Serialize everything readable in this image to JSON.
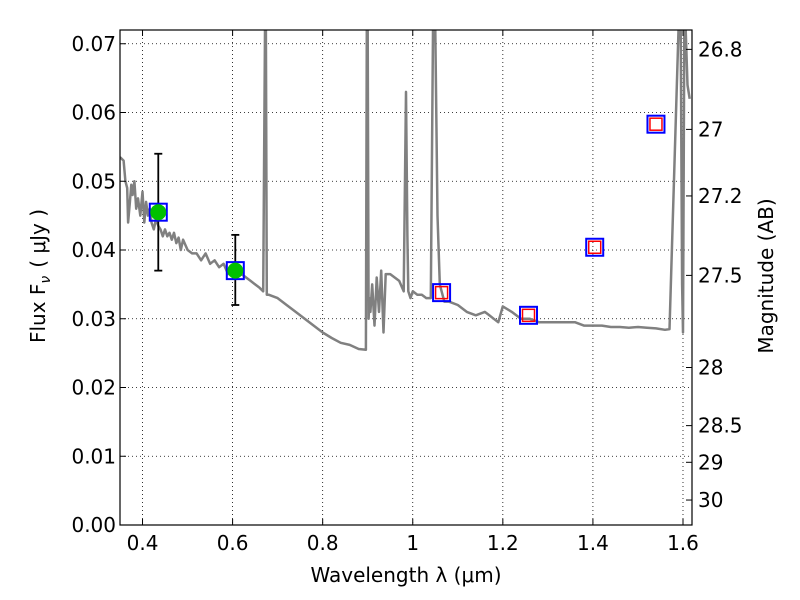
{
  "chart_data": {
    "type": "line",
    "xlabel": "Wavelength  λ (μm)",
    "ylabel_left": "Flux  F",
    "ylabel_left_sub": "ν",
    "ylabel_left_unit": "( μJy )",
    "ylabel_right": "Magnitude (AB)",
    "xlim": [
      0.35,
      1.62
    ],
    "ylim": [
      0.0,
      0.072
    ],
    "grid": true,
    "x_ticks": [
      0.4,
      0.6,
      0.8,
      1.0,
      1.2,
      1.4,
      1.6
    ],
    "x_tick_labels": [
      "0.4",
      "0.6",
      "0.8",
      "1",
      "1.2",
      "1.4",
      "1.6"
    ],
    "y_ticks": [
      0.0,
      0.01,
      0.02,
      0.03,
      0.04,
      0.05,
      0.06,
      0.07
    ],
    "y_tick_labels": [
      "0.00",
      "0.01",
      "0.02",
      "0.03",
      "0.04",
      "0.05",
      "0.06",
      "0.07"
    ],
    "right_ticks": [
      {
        "mag": 26.8,
        "label": "26.8"
      },
      {
        "mag": 27.0,
        "label": "27"
      },
      {
        "mag": 27.2,
        "label": "27.2"
      },
      {
        "mag": 27.5,
        "label": "27.5"
      },
      {
        "mag": 28.0,
        "label": "28"
      },
      {
        "mag": 28.5,
        "label": "28.5"
      },
      {
        "mag": 29.0,
        "label": "29"
      },
      {
        "mag": 30.0,
        "label": "30"
      }
    ],
    "series": [
      {
        "kind": "model-spectrum",
        "color": "#808080",
        "x": [
          0.35,
          0.358,
          0.362,
          0.366,
          0.368,
          0.372,
          0.375,
          0.378,
          0.382,
          0.386,
          0.39,
          0.395,
          0.4,
          0.404,
          0.408,
          0.412,
          0.416,
          0.42,
          0.425,
          0.43,
          0.435,
          0.44,
          0.445,
          0.45,
          0.455,
          0.46,
          0.465,
          0.47,
          0.475,
          0.48,
          0.485,
          0.49,
          0.5,
          0.51,
          0.52,
          0.53,
          0.54,
          0.55,
          0.56,
          0.57,
          0.58,
          0.59,
          0.6,
          0.61,
          0.62,
          0.63,
          0.64,
          0.65,
          0.66,
          0.668,
          0.672,
          0.674,
          0.676,
          0.68,
          0.7,
          0.72,
          0.74,
          0.76,
          0.78,
          0.8,
          0.82,
          0.84,
          0.86,
          0.88,
          0.896,
          0.898,
          0.9,
          0.902,
          0.904,
          0.906,
          0.91,
          0.915,
          0.92,
          0.925,
          0.93,
          0.935,
          0.94,
          0.95,
          0.96,
          0.97,
          0.98,
          0.985,
          0.988,
          0.99,
          0.995,
          1.0,
          1.01,
          1.02,
          1.03,
          1.04,
          1.045,
          1.05,
          1.055,
          1.06,
          1.07,
          1.08,
          1.1,
          1.12,
          1.14,
          1.16,
          1.17,
          1.18,
          1.19,
          1.2,
          1.22,
          1.24,
          1.26,
          1.28,
          1.3,
          1.32,
          1.34,
          1.36,
          1.38,
          1.4,
          1.42,
          1.44,
          1.46,
          1.48,
          1.5,
          1.52,
          1.54,
          1.56,
          1.57,
          1.59,
          1.592,
          1.595,
          1.598,
          1.6,
          1.603,
          1.606,
          1.61,
          1.615
        ],
        "y": [
          0.0535,
          0.053,
          0.05,
          0.049,
          0.044,
          0.047,
          0.0495,
          0.048,
          0.05,
          0.046,
          0.0475,
          0.045,
          0.0485,
          0.044,
          0.047,
          0.045,
          0.046,
          0.044,
          0.043,
          0.0445,
          0.0435,
          0.043,
          0.042,
          0.043,
          0.042,
          0.0425,
          0.0415,
          0.0425,
          0.041,
          0.0418,
          0.04,
          0.0415,
          0.04,
          0.0395,
          0.0395,
          0.0385,
          0.0395,
          0.038,
          0.0385,
          0.0375,
          0.038,
          0.0365,
          0.037,
          0.036,
          0.0365,
          0.036,
          0.0355,
          0.035,
          0.0345,
          0.034,
          0.072,
          0.072,
          0.0335,
          0.0335,
          0.033,
          0.032,
          0.031,
          0.03,
          0.029,
          0.028,
          0.0272,
          0.0265,
          0.0262,
          0.0256,
          0.0255,
          0.072,
          0.072,
          0.03,
          0.033,
          0.031,
          0.035,
          0.029,
          0.036,
          0.031,
          0.037,
          0.028,
          0.0365,
          0.0365,
          0.036,
          0.0355,
          0.034,
          0.063,
          0.042,
          0.034,
          0.033,
          0.034,
          0.0335,
          0.0335,
          0.033,
          0.033,
          0.072,
          0.072,
          0.045,
          0.035,
          0.0325,
          0.0325,
          0.032,
          0.031,
          0.0305,
          0.031,
          0.0305,
          0.03,
          0.0295,
          0.0318,
          0.031,
          0.03,
          0.03,
          0.0295,
          0.0295,
          0.0295,
          0.0295,
          0.0295,
          0.029,
          0.029,
          0.029,
          0.0288,
          0.0288,
          0.0287,
          0.0288,
          0.0287,
          0.0286,
          0.0284,
          0.0285,
          0.072,
          0.072,
          0.072,
          0.035,
          0.028,
          0.072,
          0.072,
          0.064,
          0.062
        ]
      },
      {
        "kind": "observed-photometry",
        "color": "#00c000",
        "points": [
          {
            "x": 0.435,
            "y": 0.0455,
            "yerr_low": 0.037,
            "yerr_high": 0.054
          },
          {
            "x": 0.606,
            "y": 0.037,
            "yerr_low": 0.032,
            "yerr_high": 0.0422
          }
        ]
      },
      {
        "kind": "model-photometry",
        "color": "#0000ff",
        "points": [
          {
            "x": 0.435,
            "y": 0.0455
          },
          {
            "x": 0.606,
            "y": 0.037
          },
          {
            "x": 1.064,
            "y": 0.0338
          },
          {
            "x": 1.257,
            "y": 0.0305
          },
          {
            "x": 1.404,
            "y": 0.0404
          },
          {
            "x": 1.54,
            "y": 0.0583
          }
        ]
      },
      {
        "kind": "upper-limit",
        "color": "#ff0000",
        "points": [
          {
            "x": 1.064,
            "y": 0.0338
          },
          {
            "x": 1.257,
            "y": 0.0305
          },
          {
            "x": 1.404,
            "y": 0.0404
          },
          {
            "x": 1.54,
            "y": 0.0583
          }
        ]
      }
    ]
  }
}
